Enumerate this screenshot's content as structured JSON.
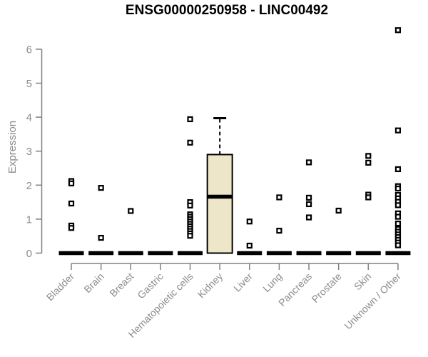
{
  "chart_data": {
    "type": "boxplot",
    "title": "ENSG00000250958 - LINC00492",
    "ylabel": "Expression",
    "xlabel": "",
    "ylim": [
      0,
      6
    ],
    "yticks": [
      0,
      1,
      2,
      3,
      4,
      5,
      6
    ],
    "grid": false,
    "legend": "none",
    "categories": [
      "Bladder",
      "Brain",
      "Breast",
      "Gastric",
      "Hematopoietic cells",
      "Kidney",
      "Liver",
      "Lung",
      "Pancreas",
      "Prostate",
      "Skin",
      "Unknown / Other"
    ],
    "boxes": [
      {
        "name": "Bladder",
        "whisker_low": 0,
        "q1": 0,
        "median": 0,
        "q3": 0,
        "whisker_high": 0,
        "outliers": [
          2.12,
          2.05,
          1.46,
          0.81,
          0.74
        ]
      },
      {
        "name": "Brain",
        "whisker_low": 0,
        "q1": 0,
        "median": 0,
        "q3": 0,
        "whisker_high": 0,
        "outliers": [
          1.92,
          0.45
        ]
      },
      {
        "name": "Breast",
        "whisker_low": 0,
        "q1": 0,
        "median": 0,
        "q3": 0,
        "whisker_high": 0,
        "outliers": [
          1.24
        ]
      },
      {
        "name": "Gastric",
        "whisker_low": 0,
        "q1": 0,
        "median": 0,
        "q3": 0,
        "whisker_high": 0,
        "outliers": []
      },
      {
        "name": "Hematopoietic cells",
        "whisker_low": 0,
        "q1": 0,
        "median": 0,
        "q3": 0,
        "whisker_high": 0,
        "outliers": [
          3.94,
          3.25,
          1.5,
          1.4,
          1.14,
          1.07,
          1.0,
          0.93,
          0.86,
          0.79,
          0.72,
          0.65,
          0.58,
          0.51
        ]
      },
      {
        "name": "Kidney",
        "whisker_low": 0,
        "q1": 0,
        "median": 1.66,
        "q3": 2.9,
        "whisker_high": 3.97,
        "outliers": []
      },
      {
        "name": "Liver",
        "whisker_low": 0,
        "q1": 0,
        "median": 0,
        "q3": 0,
        "whisker_high": 0,
        "outliers": [
          0.93,
          0.22
        ]
      },
      {
        "name": "Lung",
        "whisker_low": 0,
        "q1": 0,
        "median": 0,
        "q3": 0,
        "whisker_high": 0,
        "outliers": [
          1.64,
          0.66
        ]
      },
      {
        "name": "Pancreas",
        "whisker_low": 0,
        "q1": 0,
        "median": 0,
        "q3": 0,
        "whisker_high": 0,
        "outliers": [
          2.67,
          1.63,
          1.44,
          1.05
        ]
      },
      {
        "name": "Prostate",
        "whisker_low": 0,
        "q1": 0,
        "median": 0,
        "q3": 0,
        "whisker_high": 0,
        "outliers": [
          1.25
        ]
      },
      {
        "name": "Skin",
        "whisker_low": 0,
        "q1": 0,
        "median": 0,
        "q3": 0,
        "whisker_high": 0,
        "outliers": [
          2.86,
          2.66,
          1.72,
          1.64
        ]
      },
      {
        "name": "Unknown / Other",
        "whisker_low": 0,
        "q1": 0,
        "median": 0,
        "q3": 0,
        "whisker_high": 0,
        "outliers": [
          6.56,
          3.61,
          2.47,
          1.97,
          1.9,
          1.71,
          1.61,
          1.51,
          1.41,
          1.17,
          1.07,
          0.87,
          0.71,
          0.63,
          0.55,
          0.47,
          0.39,
          0.31,
          0.23
        ]
      }
    ],
    "colors": {
      "box_fill": "#ede6c9",
      "box_stroke": "#000000",
      "median": "#000000",
      "outlier": "#000000",
      "axis": "#808080",
      "tick_text": "#8c8c8c",
      "title_text": "#000000",
      "background": "#ffffff"
    }
  }
}
